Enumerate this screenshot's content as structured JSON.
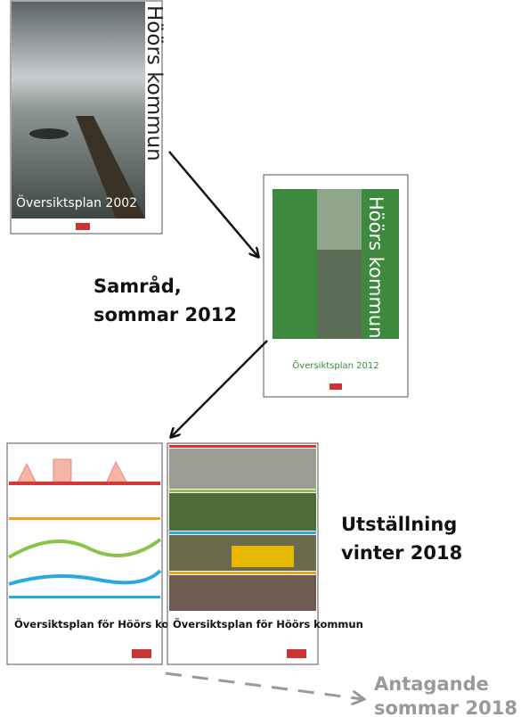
{
  "covers": [
    {
      "title": "Höörs kommun",
      "subtitle": "Översiktsplan 2002"
    },
    {
      "title": "Höörs kommun",
      "subtitle": "Översiktsplan 2012"
    },
    {
      "title": "Översiktsplan för Höörs kommun"
    },
    {
      "title": "Översiktsplan för Höörs kommun"
    }
  ],
  "stages": [
    {
      "lines": [
        "Samråd,",
        "sommar 2012"
      ]
    },
    {
      "lines": [
        "Utställning",
        "vinter 2018"
      ]
    },
    {
      "lines": [
        "Antagande",
        "sommar 2018"
      ]
    }
  ]
}
